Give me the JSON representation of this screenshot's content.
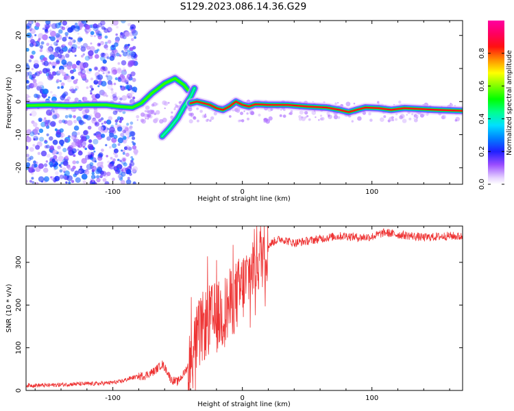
{
  "title": "S129.2023.086.14.36.G29",
  "colors": {
    "snr_line": "#ee3333",
    "spectrogram_low": "#8a2be2",
    "ridge_core": "#e8103c",
    "ridge_edge": "#10c4f0"
  },
  "chart_data": [
    {
      "type": "heatmap",
      "title": "",
      "xlabel": "Height of straight line (km)",
      "ylabel": "Frequency (Hz)",
      "xlim": [
        -167,
        170
      ],
      "ylim": [
        -25,
        24.5
      ],
      "x_ticks": [
        -100,
        0,
        100
      ],
      "y_ticks": [
        -20,
        -10,
        0,
        10,
        20
      ],
      "x_tick_labels": [
        "-100",
        "0",
        "100"
      ],
      "y_tick_labels": [
        "-20",
        "-10",
        "0",
        "10",
        "20"
      ],
      "colorbar": {
        "label": "Normalized spectral amplitude",
        "range": [
          0,
          1
        ],
        "ticks": [
          0.0,
          0.2,
          0.4,
          0.6,
          0.8
        ],
        "tick_labels": [
          "0.0",
          "0.2",
          "0.4",
          "0.6",
          "0.8"
        ],
        "colormap": "gist_ncar-like (purple-blue-cyan-green-yellow-red-magenta)"
      },
      "ridges": [
        {
          "points": [
            [
              -167,
              -1.2
            ],
            [
              -150,
              -1.0
            ],
            [
              -135,
              -1.2
            ],
            [
              -120,
              -1.0
            ],
            [
              -105,
              -1.0
            ],
            [
              -95,
              -1.5
            ],
            [
              -85,
              -1.8
            ],
            [
              -78,
              -0.5
            ],
            [
              -70,
              2.5
            ],
            [
              -60,
              5.5
            ],
            [
              -52,
              7.0
            ],
            [
              -45,
              5.0
            ],
            [
              -42,
              3.5
            ]
          ],
          "amplitude": 0.55
        },
        {
          "points": [
            [
              -62,
              -10.5
            ],
            [
              -56,
              -8.0
            ],
            [
              -50,
              -5.0
            ],
            [
              -45,
              -1.5
            ],
            [
              -40,
              1.5
            ],
            [
              -37,
              4.0
            ]
          ],
          "amplitude": 0.4
        },
        {
          "points": [
            [
              -40,
              -0.5
            ],
            [
              -35,
              0.0
            ],
            [
              -30,
              -0.5
            ],
            [
              -25,
              -1.0
            ],
            [
              -20,
              -2.0
            ],
            [
              -15,
              -2.5
            ],
            [
              -10,
              -1.5
            ],
            [
              -5,
              0.0
            ],
            [
              0,
              -1.0
            ],
            [
              5,
              -1.5
            ],
            [
              10,
              -0.8
            ],
            [
              20,
              -1.0
            ],
            [
              35,
              -1.0
            ],
            [
              50,
              -1.5
            ],
            [
              65,
              -1.8
            ],
            [
              75,
              -2.5
            ],
            [
              82,
              -3.2
            ],
            [
              88,
              -2.5
            ],
            [
              95,
              -1.8
            ],
            [
              105,
              -2.0
            ],
            [
              115,
              -2.5
            ],
            [
              125,
              -2.0
            ],
            [
              135,
              -2.2
            ],
            [
              150,
              -2.5
            ],
            [
              170,
              -2.8
            ]
          ],
          "amplitude": 0.85
        }
      ],
      "noise": {
        "x_range": [
          -167,
          -82
        ],
        "y_range": [
          -25,
          24.5
        ],
        "amplitude": 0.2
      }
    },
    {
      "type": "line",
      "title": "",
      "xlabel": "Height of straight line (km)",
      "ylabel": "SNR (10 * v/v)",
      "xlim": [
        -167,
        170
      ],
      "ylim": [
        0,
        385
      ],
      "x_ticks": [
        -100,
        0,
        100
      ],
      "y_ticks": [
        0,
        100,
        200,
        300
      ],
      "x_tick_labels": [
        "-100",
        "0",
        "100"
      ],
      "y_tick_labels": [
        "0",
        "100",
        "200",
        "300"
      ],
      "series": [
        {
          "x": [
            -167,
            -150,
            -130,
            -110,
            -95,
            -85,
            -75,
            -68,
            -62,
            -58,
            -55,
            -50,
            -45,
            -40,
            -35,
            -30,
            -25,
            -20,
            -15,
            -10,
            -5,
            0,
            5,
            10,
            15,
            20,
            25,
            30,
            40,
            50,
            60,
            70,
            80,
            90,
            100,
            110,
            120,
            130,
            140,
            150,
            160,
            170
          ],
          "values": [
            12,
            12,
            15,
            16,
            20,
            30,
            35,
            45,
            62,
            45,
            25,
            20,
            40,
            70,
            120,
            150,
            165,
            170,
            180,
            200,
            220,
            240,
            270,
            300,
            320,
            340,
            350,
            355,
            345,
            350,
            355,
            360,
            362,
            358,
            360,
            370,
            365,
            362,
            358,
            360,
            362,
            360
          ]
        }
      ]
    }
  ]
}
